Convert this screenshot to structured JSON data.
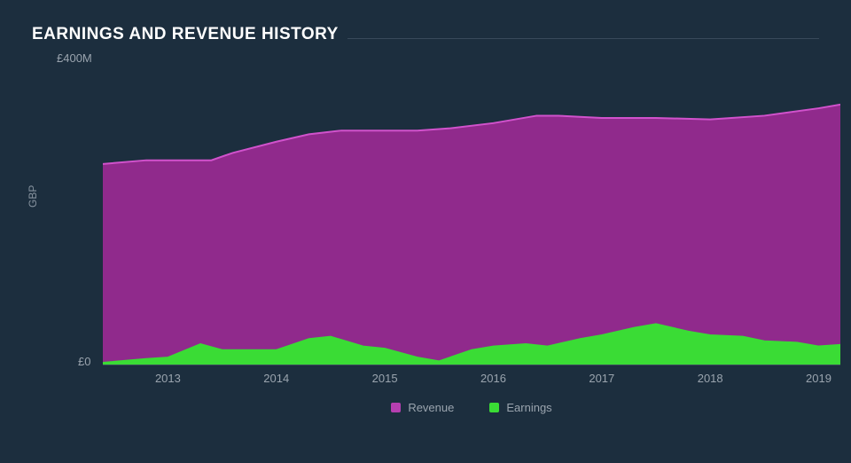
{
  "title": "EARNINGS AND REVENUE HISTORY",
  "chart": {
    "type": "area",
    "y_axis_title": "GBP",
    "y_top_label": "£400M",
    "y_bottom_label": "£0",
    "y_max": 400,
    "background_color": "#1c2e3e",
    "baseline_color": "#3a4b5b",
    "tick_font_size": 13,
    "tick_color": "#9aa4ae",
    "x_start": 2012.4,
    "x_end": 2019.2,
    "x_ticks": [
      2013,
      2014,
      2015,
      2016,
      2017,
      2018,
      2019
    ],
    "series": [
      {
        "name": "Revenue",
        "fill": "#902a8c",
        "stroke": "#d152cc",
        "stroke_width": 2,
        "points": [
          {
            "x": 2012.4,
            "y": 270
          },
          {
            "x": 2012.8,
            "y": 275
          },
          {
            "x": 2013.0,
            "y": 275
          },
          {
            "x": 2013.4,
            "y": 275
          },
          {
            "x": 2013.6,
            "y": 285
          },
          {
            "x": 2014.0,
            "y": 300
          },
          {
            "x": 2014.3,
            "y": 310
          },
          {
            "x": 2014.6,
            "y": 315
          },
          {
            "x": 2015.0,
            "y": 315
          },
          {
            "x": 2015.3,
            "y": 315
          },
          {
            "x": 2015.6,
            "y": 318
          },
          {
            "x": 2016.0,
            "y": 325
          },
          {
            "x": 2016.4,
            "y": 335
          },
          {
            "x": 2016.6,
            "y": 335
          },
          {
            "x": 2017.0,
            "y": 332
          },
          {
            "x": 2017.5,
            "y": 332
          },
          {
            "x": 2018.0,
            "y": 330
          },
          {
            "x": 2018.5,
            "y": 335
          },
          {
            "x": 2019.0,
            "y": 345
          },
          {
            "x": 2019.2,
            "y": 350
          }
        ]
      },
      {
        "name": "Earnings",
        "fill": "#3adc35",
        "stroke": "#3adc35",
        "stroke_width": 1,
        "points": [
          {
            "x": 2012.4,
            "y": 3
          },
          {
            "x": 2012.8,
            "y": 8
          },
          {
            "x": 2013.0,
            "y": 10
          },
          {
            "x": 2013.3,
            "y": 28
          },
          {
            "x": 2013.5,
            "y": 20
          },
          {
            "x": 2013.8,
            "y": 20
          },
          {
            "x": 2014.0,
            "y": 20
          },
          {
            "x": 2014.3,
            "y": 35
          },
          {
            "x": 2014.5,
            "y": 38
          },
          {
            "x": 2014.8,
            "y": 25
          },
          {
            "x": 2015.0,
            "y": 22
          },
          {
            "x": 2015.3,
            "y": 10
          },
          {
            "x": 2015.5,
            "y": 5
          },
          {
            "x": 2015.8,
            "y": 20
          },
          {
            "x": 2016.0,
            "y": 25
          },
          {
            "x": 2016.3,
            "y": 28
          },
          {
            "x": 2016.5,
            "y": 25
          },
          {
            "x": 2016.8,
            "y": 35
          },
          {
            "x": 2017.0,
            "y": 40
          },
          {
            "x": 2017.3,
            "y": 50
          },
          {
            "x": 2017.5,
            "y": 55
          },
          {
            "x": 2017.8,
            "y": 45
          },
          {
            "x": 2018.0,
            "y": 40
          },
          {
            "x": 2018.3,
            "y": 38
          },
          {
            "x": 2018.5,
            "y": 32
          },
          {
            "x": 2018.8,
            "y": 30
          },
          {
            "x": 2019.0,
            "y": 25
          },
          {
            "x": 2019.2,
            "y": 27
          }
        ]
      }
    ],
    "legend": [
      {
        "label": "Revenue",
        "color": "#b53fb0"
      },
      {
        "label": "Earnings",
        "color": "#3adc35"
      }
    ]
  }
}
